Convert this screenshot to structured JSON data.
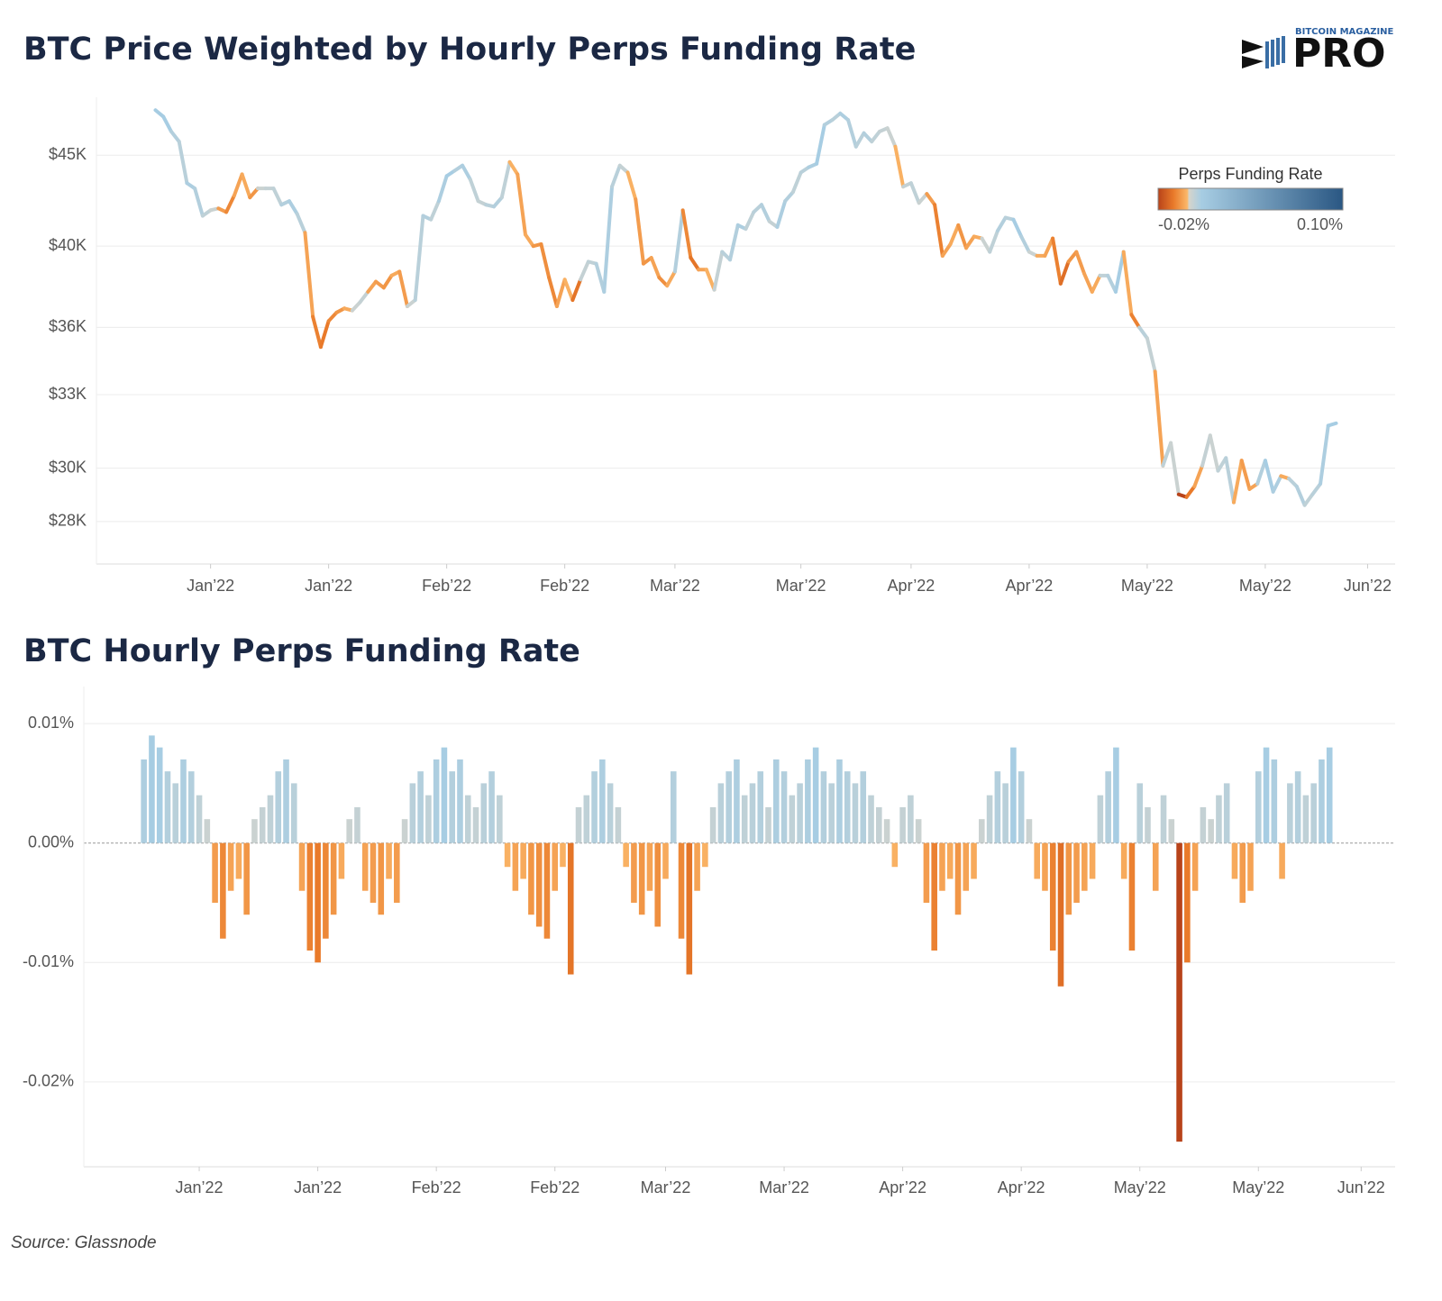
{
  "chart_data": [
    {
      "type": "line",
      "title": "BTC Price Weighted by Hourly Perps Funding Rate",
      "yscale": "log",
      "grid": true,
      "values": [
        47700,
        47300,
        46400,
        45800,
        43400,
        43100,
        41600,
        41900,
        42000,
        41800,
        42700,
        43900,
        42600,
        43100,
        43100,
        43100,
        42200,
        42400,
        41700,
        40700,
        36500,
        35100,
        36300,
        36700,
        36900,
        36800,
        37200,
        37700,
        38200,
        37900,
        38500,
        38700,
        37000,
        37300,
        41600,
        41400,
        42400,
        43800,
        44100,
        44400,
        43600,
        42400,
        42200,
        42100,
        42600,
        44600,
        43900,
        40600,
        40000,
        40100,
        38400,
        37000,
        38300,
        37300,
        38300,
        39200,
        39100,
        37700,
        43200,
        44400,
        44000,
        42500,
        39100,
        39400,
        38400,
        38000,
        38700,
        41900,
        39400,
        38800,
        38800,
        37800,
        39700,
        39300,
        41100,
        40900,
        41800,
        42200,
        41300,
        41000,
        42400,
        42900,
        44000,
        44300,
        44500,
        46800,
        47100,
        47500,
        47100,
        45500,
        46300,
        45800,
        46400,
        46600,
        45500,
        43200,
        43400,
        42300,
        42800,
        42200,
        39500,
        40100,
        41100,
        39900,
        40500,
        40400,
        39700,
        40800,
        41500,
        41400,
        40500,
        39700,
        39500,
        39500,
        40400,
        38100,
        39200,
        39700,
        38600,
        37700,
        38500,
        38500,
        37700,
        39700,
        36600,
        36000,
        35500,
        34000,
        30100,
        31000,
        29000,
        28900,
        29300,
        30100,
        31300,
        29900,
        30400,
        28700,
        30300,
        29200,
        29400,
        30300,
        29100,
        29700,
        29600,
        29300,
        28600,
        29000,
        29400,
        31700,
        31800
      ],
      "xlim": [
        -7.5,
        157.5
      ],
      "xticks": [
        {
          "value": 7,
          "label": "Jan’22"
        },
        {
          "value": 22,
          "label": "Jan’22"
        },
        {
          "value": 37,
          "label": "Feb’22"
        },
        {
          "value": 52,
          "label": "Feb’22"
        },
        {
          "value": 66,
          "label": "Mar’22"
        },
        {
          "value": 82,
          "label": "Mar’22"
        },
        {
          "value": 96,
          "label": "Apr’22"
        },
        {
          "value": 111,
          "label": "Apr’22"
        },
        {
          "value": 126,
          "label": "May’22"
        },
        {
          "value": 141,
          "label": "May’22"
        },
        {
          "value": 154,
          "label": "Jun’22"
        }
      ],
      "ylim": [
        26500,
        48500
      ],
      "yticks": [
        {
          "value": 28000,
          "label": "$28K"
        },
        {
          "value": 30000,
          "label": "$30K"
        },
        {
          "value": 33000,
          "label": "$33K"
        },
        {
          "value": 36000,
          "label": "$36K"
        },
        {
          "value": 40000,
          "label": "$40K"
        },
        {
          "value": 45000,
          "label": "$45K"
        }
      ],
      "colorscale": {
        "title": "Perps Funding Rate",
        "range": [
          -0.02,
          0.1
        ],
        "ticks": [
          {
            "value": -0.02,
            "label": "-0.02%"
          },
          {
            "value": 0.1,
            "label": "0.10%"
          }
        ],
        "color_stops": [
          {
            "value": -0.02,
            "color": "#b8431a"
          },
          {
            "value": -0.01,
            "color": "#e97a2a"
          },
          {
            "value": -0.001,
            "color": "#fbb86a"
          },
          {
            "value": 0,
            "color": "#d6d4cb"
          },
          {
            "value": 0.008,
            "color": "#a7cde3"
          },
          {
            "value": 0.1,
            "color": "#2a5783"
          }
        ]
      }
    },
    {
      "type": "bar",
      "title": "BTC Hourly Perps Funding Rate",
      "grid": true,
      "values": [
        0.007,
        0.009,
        0.008,
        0.006,
        0.005,
        0.007,
        0.006,
        0.004,
        0.002,
        -0.005,
        -0.008,
        -0.004,
        -0.003,
        -0.006,
        0.002,
        0.003,
        0.004,
        0.006,
        0.007,
        0.005,
        -0.004,
        -0.009,
        -0.01,
        -0.008,
        -0.006,
        -0.003,
        0.002,
        0.003,
        -0.004,
        -0.005,
        -0.006,
        -0.003,
        -0.005,
        0.002,
        0.005,
        0.006,
        0.004,
        0.007,
        0.008,
        0.006,
        0.007,
        0.004,
        0.003,
        0.005,
        0.006,
        0.004,
        -0.002,
        -0.004,
        -0.003,
        -0.006,
        -0.007,
        -0.008,
        -0.004,
        -0.002,
        -0.011,
        0.003,
        0.004,
        0.006,
        0.007,
        0.005,
        0.003,
        -0.002,
        -0.005,
        -0.006,
        -0.004,
        -0.007,
        -0.003,
        0.006,
        -0.008,
        -0.011,
        -0.004,
        -0.002,
        0.003,
        0.005,
        0.006,
        0.007,
        0.004,
        0.005,
        0.006,
        0.003,
        0.007,
        0.006,
        0.004,
        0.005,
        0.007,
        0.008,
        0.006,
        0.005,
        0.007,
        0.006,
        0.005,
        0.006,
        0.004,
        0.003,
        0.002,
        -0.002,
        0.003,
        0.004,
        0.002,
        -0.005,
        -0.009,
        -0.004,
        -0.003,
        -0.006,
        -0.004,
        -0.003,
        0.002,
        0.004,
        0.006,
        0.005,
        0.008,
        0.006,
        0.002,
        -0.003,
        -0.004,
        -0.009,
        -0.012,
        -0.006,
        -0.005,
        -0.004,
        -0.003,
        0.004,
        0.006,
        0.008,
        -0.003,
        -0.009,
        0.005,
        0.003,
        -0.004,
        0.004,
        0.002,
        -0.025,
        -0.01,
        -0.004,
        0.003,
        0.002,
        0.004,
        0.005,
        -0.003,
        -0.005,
        -0.004,
        0.006,
        0.008,
        0.007,
        -0.003,
        0.005,
        0.006,
        0.004,
        0.005,
        0.007,
        0.008
      ],
      "xlim": [
        -7.6,
        158.3
      ],
      "xticks": [
        {
          "value": 7,
          "label": "Jan’22"
        },
        {
          "value": 22,
          "label": "Jan’22"
        },
        {
          "value": 37,
          "label": "Feb’22"
        },
        {
          "value": 52,
          "label": "Feb’22"
        },
        {
          "value": 66,
          "label": "Mar’22"
        },
        {
          "value": 81,
          "label": "Mar’22"
        },
        {
          "value": 96,
          "label": "Apr’22"
        },
        {
          "value": 111,
          "label": "Apr’22"
        },
        {
          "value": 126,
          "label": "May’22"
        },
        {
          "value": 141,
          "label": "May’22"
        },
        {
          "value": 154,
          "label": "Jun’22"
        }
      ],
      "ylim": [
        -0.0271,
        0.0131
      ],
      "yticks": [
        {
          "value": 0.01,
          "label": "0.01%"
        },
        {
          "value": 0,
          "label": "0.00%"
        },
        {
          "value": -0.01,
          "label": "-0.01%"
        },
        {
          "value": -0.02,
          "label": "-0.02%"
        }
      ]
    }
  ],
  "logo": {
    "top": "BITCOIN MAGAZINE",
    "main": "PRO"
  },
  "source": "Source: Glassnode"
}
